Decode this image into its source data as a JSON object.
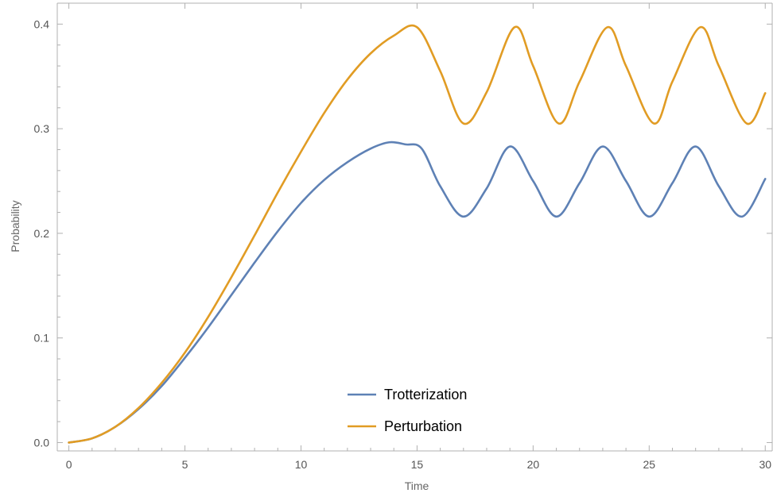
{
  "chart_data": {
    "type": "line",
    "title": "",
    "xlabel": "Time",
    "ylabel": "Probability",
    "xlim": [
      -0.5,
      30.3
    ],
    "ylim": [
      -0.008,
      0.42
    ],
    "xticks": [
      0,
      5,
      10,
      15,
      20,
      25,
      30
    ],
    "xtick_labels": [
      "0",
      "5",
      "10",
      "15",
      "20",
      "25",
      "30"
    ],
    "yticks": [
      0.0,
      0.1,
      0.2,
      0.3,
      0.4
    ],
    "ytick_labels": [
      "0.0",
      "0.1",
      "0.2",
      "0.3",
      "0.4"
    ],
    "grid": false,
    "legend_position": "bottom-center",
    "series": [
      {
        "name": "Trotterization",
        "color": "#5e81b5",
        "x": [
          0,
          1,
          2,
          3,
          4,
          5,
          6,
          7,
          8,
          9,
          10,
          11,
          12,
          13,
          13.8,
          14.5,
          15.2,
          16,
          17,
          18,
          19,
          20,
          21,
          22,
          23,
          24,
          25,
          26,
          27,
          28,
          29,
          30
        ],
        "y": [
          0.0,
          0.004,
          0.015,
          0.032,
          0.054,
          0.081,
          0.11,
          0.141,
          0.172,
          0.202,
          0.229,
          0.251,
          0.268,
          0.281,
          0.287,
          0.285,
          0.281,
          0.245,
          0.216,
          0.243,
          0.283,
          0.25,
          0.216,
          0.248,
          0.283,
          0.25,
          0.216,
          0.248,
          0.283,
          0.245,
          0.216,
          0.252
        ]
      },
      {
        "name": "Perturbation",
        "color": "#e19c24",
        "x": [
          0,
          1,
          2,
          3,
          4,
          5,
          6,
          7,
          8,
          9,
          10,
          11,
          12,
          13,
          14,
          15,
          16,
          17,
          18,
          19.2,
          20,
          21.1,
          22,
          23.2,
          24,
          25.2,
          26,
          27.2,
          28,
          29.2,
          30
        ],
        "y": [
          0.0,
          0.004,
          0.015,
          0.033,
          0.057,
          0.086,
          0.12,
          0.158,
          0.198,
          0.239,
          0.278,
          0.315,
          0.347,
          0.372,
          0.389,
          0.397,
          0.355,
          0.305,
          0.335,
          0.397,
          0.36,
          0.305,
          0.345,
          0.397,
          0.36,
          0.305,
          0.345,
          0.397,
          0.36,
          0.305,
          0.334
        ]
      }
    ]
  }
}
